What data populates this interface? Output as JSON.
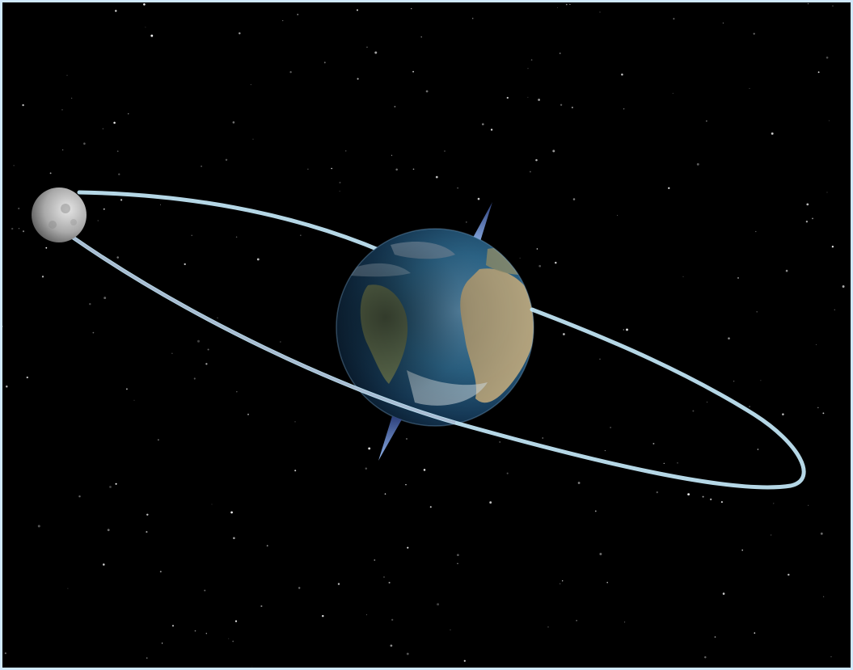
{
  "scene": {
    "subject": "earth-moon-orbit",
    "objects": [
      "earth",
      "moon",
      "orbit-path",
      "rotation-axis",
      "starfield"
    ],
    "colors": {
      "background": "#000000",
      "frame": "#cfe8fb",
      "orbit": "#bfe3f2",
      "axis": "#7d9fd6",
      "ocean": "#1f4f78",
      "land": "#c9b48a",
      "moon": "#b9b9b9"
    }
  }
}
